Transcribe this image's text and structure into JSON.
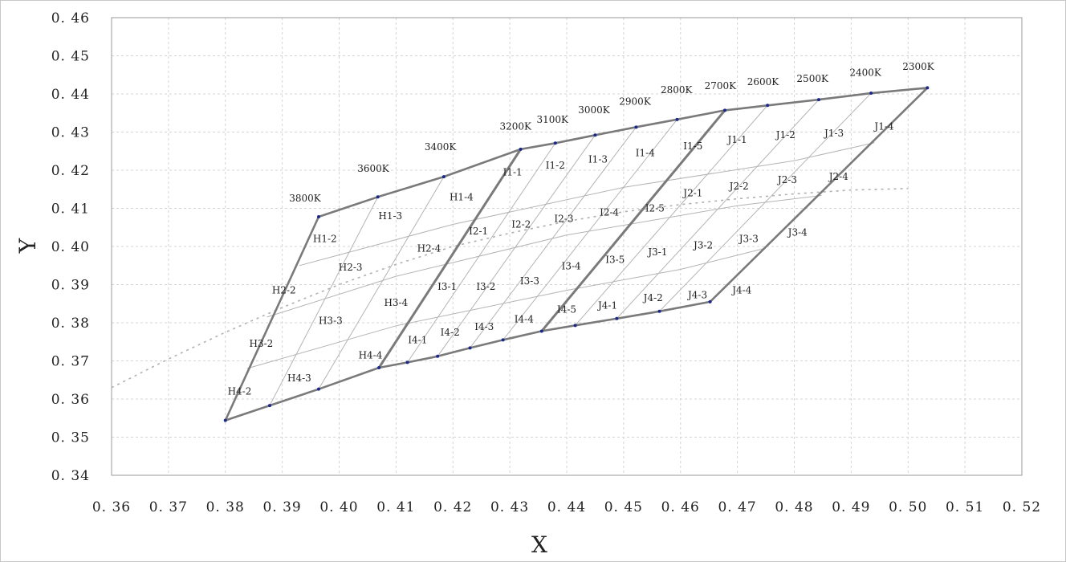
{
  "chart_data": {
    "type": "line",
    "title": "",
    "xlabel": "X",
    "ylabel": "Y",
    "xlim": [
      0.36,
      0.52
    ],
    "ylim": [
      0.34,
      0.46
    ],
    "x_ticks": [
      "0. 36",
      "0. 37",
      "0. 38",
      "0. 39",
      "0. 40",
      "0. 41",
      "0. 42",
      "0. 43",
      "0. 44",
      "0. 45",
      "0. 46",
      "0. 47",
      "0. 48",
      "0. 49",
      "0. 50",
      "0. 51",
      "0. 52"
    ],
    "y_ticks": [
      "0. 34",
      "0. 35",
      "0. 36",
      "0. 37",
      "0. 38",
      "0. 39",
      "0. 40",
      "0. 41",
      "0. 42",
      "0. 43",
      "0. 44",
      "0. 45",
      "0. 46"
    ],
    "x_tick_values": [
      0.36,
      0.37,
      0.38,
      0.39,
      0.4,
      0.41,
      0.42,
      0.43,
      0.44,
      0.45,
      0.46,
      0.47,
      0.48,
      0.49,
      0.5,
      0.51,
      0.52
    ],
    "y_tick_values": [
      0.34,
      0.35,
      0.36,
      0.37,
      0.38,
      0.39,
      0.4,
      0.41,
      0.42,
      0.43,
      0.44,
      0.45,
      0.46
    ],
    "grid": true,
    "grid_style": "dashed",
    "colors": {
      "thick": "#7a7a7a",
      "thin": "#b4b4b4",
      "dots": "#1a2a8a",
      "locus": "#b0b0b0"
    },
    "cct_points": [
      {
        "label": "3800K",
        "x": 0.3964,
        "y": 0.4078,
        "lx": 0.394,
        "ly": 0.4118
      },
      {
        "label": "3600K",
        "x": 0.4068,
        "y": 0.413,
        "lx": 0.406,
        "ly": 0.4196
      },
      {
        "label": "3400K",
        "x": 0.4184,
        "y": 0.4183,
        "lx": 0.4178,
        "ly": 0.4253
      },
      {
        "label": "3200K",
        "x": 0.4319,
        "y": 0.4255,
        "lx": 0.431,
        "ly": 0.4306
      },
      {
        "label": "3100K",
        "x": 0.438,
        "y": 0.4271,
        "lx": 0.4375,
        "ly": 0.4324
      },
      {
        "label": "3000K",
        "x": 0.445,
        "y": 0.4292,
        "lx": 0.4448,
        "ly": 0.435
      },
      {
        "label": "2900K",
        "x": 0.4522,
        "y": 0.4313,
        "lx": 0.452,
        "ly": 0.4372
      },
      {
        "label": "2800K",
        "x": 0.4594,
        "y": 0.4333,
        "lx": 0.4593,
        "ly": 0.4402
      },
      {
        "label": "2700K",
        "x": 0.4678,
        "y": 0.4357,
        "lx": 0.467,
        "ly": 0.4413
      },
      {
        "label": "2600K",
        "x": 0.4753,
        "y": 0.437,
        "lx": 0.4745,
        "ly": 0.4423
      },
      {
        "label": "2500K",
        "x": 0.4843,
        "y": 0.4385,
        "lx": 0.4832,
        "ly": 0.4432
      },
      {
        "label": "2400K",
        "x": 0.4935,
        "y": 0.4402,
        "lx": 0.4925,
        "ly": 0.4447
      },
      {
        "label": "2300K",
        "x": 0.5034,
        "y": 0.4416,
        "lx": 0.5018,
        "ly": 0.4463
      }
    ],
    "bottom_points": [
      {
        "x": 0.38,
        "y": 0.3544
      },
      {
        "x": 0.3878,
        "y": 0.3583
      },
      {
        "x": 0.3964,
        "y": 0.3626
      },
      {
        "x": 0.407,
        "y": 0.3682
      },
      {
        "x": 0.412,
        "y": 0.3696
      },
      {
        "x": 0.4173,
        "y": 0.3712
      },
      {
        "x": 0.423,
        "y": 0.3734
      },
      {
        "x": 0.4288,
        "y": 0.3755
      },
      {
        "x": 0.4356,
        "y": 0.3778
      },
      {
        "x": 0.4415,
        "y": 0.3793
      },
      {
        "x": 0.4488,
        "y": 0.3811
      },
      {
        "x": 0.4563,
        "y": 0.383
      },
      {
        "x": 0.4652,
        "y": 0.3855
      }
    ],
    "outline_points": [
      {
        "x": 0.3964,
        "y": 0.4078
      },
      {
        "x": 0.4068,
        "y": 0.413
      },
      {
        "x": 0.4184,
        "y": 0.4183
      },
      {
        "x": 0.4319,
        "y": 0.4255
      },
      {
        "x": 0.438,
        "y": 0.4271
      },
      {
        "x": 0.445,
        "y": 0.4292
      },
      {
        "x": 0.4522,
        "y": 0.4313
      },
      {
        "x": 0.4594,
        "y": 0.4333
      },
      {
        "x": 0.4678,
        "y": 0.4357
      },
      {
        "x": 0.4753,
        "y": 0.437
      },
      {
        "x": 0.4843,
        "y": 0.4385
      },
      {
        "x": 0.4935,
        "y": 0.4402
      },
      {
        "x": 0.5034,
        "y": 0.4416
      },
      {
        "x": 0.4652,
        "y": 0.3855
      },
      {
        "x": 0.4563,
        "y": 0.383
      },
      {
        "x": 0.4488,
        "y": 0.3811
      },
      {
        "x": 0.4415,
        "y": 0.3793
      },
      {
        "x": 0.4356,
        "y": 0.3778
      },
      {
        "x": 0.4288,
        "y": 0.3755
      },
      {
        "x": 0.423,
        "y": 0.3734
      },
      {
        "x": 0.4173,
        "y": 0.3712
      },
      {
        "x": 0.412,
        "y": 0.3696
      },
      {
        "x": 0.407,
        "y": 0.3682
      },
      {
        "x": 0.3964,
        "y": 0.3626
      },
      {
        "x": 0.3878,
        "y": 0.3583
      },
      {
        "x": 0.38,
        "y": 0.3544
      }
    ],
    "thick_dividers": [
      {
        "from": {
          "x": 0.4319,
          "y": 0.4255
        },
        "to": {
          "x": 0.407,
          "y": 0.3682
        }
      },
      {
        "from": {
          "x": 0.4678,
          "y": 0.4357
        },
        "to": {
          "x": 0.4356,
          "y": 0.3778
        }
      }
    ],
    "thin_vertical_lines": [
      {
        "from": {
          "x": 0.4068,
          "y": 0.413
        },
        "to": {
          "x": 0.3878,
          "y": 0.3583
        }
      },
      {
        "from": {
          "x": 0.4184,
          "y": 0.4183
        },
        "to": {
          "x": 0.3964,
          "y": 0.3626
        }
      },
      {
        "from": {
          "x": 0.438,
          "y": 0.4271
        },
        "to": {
          "x": 0.412,
          "y": 0.3696
        }
      },
      {
        "from": {
          "x": 0.445,
          "y": 0.4292
        },
        "to": {
          "x": 0.4173,
          "y": 0.3712
        }
      },
      {
        "from": {
          "x": 0.4522,
          "y": 0.4313
        },
        "to": {
          "x": 0.423,
          "y": 0.3734
        }
      },
      {
        "from": {
          "x": 0.4594,
          "y": 0.4333
        },
        "to": {
          "x": 0.4288,
          "y": 0.3755
        }
      },
      {
        "from": {
          "x": 0.4753,
          "y": 0.437
        },
        "to": {
          "x": 0.4415,
          "y": 0.3793
        }
      },
      {
        "from": {
          "x": 0.4843,
          "y": 0.4385
        },
        "to": {
          "x": 0.4488,
          "y": 0.3811
        }
      },
      {
        "from": {
          "x": 0.4935,
          "y": 0.4402
        },
        "to": {
          "x": 0.4563,
          "y": 0.383
        }
      }
    ],
    "thin_horizontal_lines": [
      [
        {
          "x": 0.393,
          "y": 0.395
        },
        {
          "x": 0.42,
          "y": 0.4058
        },
        {
          "x": 0.45,
          "y": 0.4155
        },
        {
          "x": 0.48,
          "y": 0.4225
        },
        {
          "x": 0.4941,
          "y": 0.4272
        }
      ],
      [
        {
          "x": 0.3873,
          "y": 0.3815
        },
        {
          "x": 0.41,
          "y": 0.3922
        },
        {
          "x": 0.44,
          "y": 0.403
        },
        {
          "x": 0.47,
          "y": 0.4107
        },
        {
          "x": 0.4848,
          "y": 0.4134
        }
      ],
      [
        {
          "x": 0.3838,
          "y": 0.368
        },
        {
          "x": 0.41,
          "y": 0.3792
        },
        {
          "x": 0.44,
          "y": 0.3885
        },
        {
          "x": 0.46,
          "y": 0.394
        },
        {
          "x": 0.4748,
          "y": 0.3995
        }
      ]
    ],
    "planckian_locus": [
      {
        "x": 0.36,
        "y": 0.363
      },
      {
        "x": 0.37,
        "y": 0.3705
      },
      {
        "x": 0.38,
        "y": 0.3775
      },
      {
        "x": 0.39,
        "y": 0.384
      },
      {
        "x": 0.4,
        "y": 0.39
      },
      {
        "x": 0.41,
        "y": 0.3953
      },
      {
        "x": 0.42,
        "y": 0.4
      },
      {
        "x": 0.43,
        "y": 0.4035
      },
      {
        "x": 0.44,
        "y": 0.4066
      },
      {
        "x": 0.45,
        "y": 0.4091
      },
      {
        "x": 0.46,
        "y": 0.411
      },
      {
        "x": 0.47,
        "y": 0.4125
      },
      {
        "x": 0.48,
        "y": 0.4138
      },
      {
        "x": 0.49,
        "y": 0.4148
      },
      {
        "x": 0.5,
        "y": 0.4152
      }
    ],
    "bin_labels": [
      {
        "label": "H1-2",
        "x": 0.3975,
        "y": 0.402
      },
      {
        "label": "H1-3",
        "x": 0.409,
        "y": 0.408
      },
      {
        "label": "H1-4",
        "x": 0.4215,
        "y": 0.413
      },
      {
        "label": "H2-2",
        "x": 0.3903,
        "y": 0.3885
      },
      {
        "label": "H2-3",
        "x": 0.402,
        "y": 0.3945
      },
      {
        "label": "H2-4",
        "x": 0.4158,
        "y": 0.3995
      },
      {
        "label": "H3-2",
        "x": 0.3863,
        "y": 0.3745
      },
      {
        "label": "H3-3",
        "x": 0.3985,
        "y": 0.3805
      },
      {
        "label": "H3-4",
        "x": 0.41,
        "y": 0.3853
      },
      {
        "label": "H4-2",
        "x": 0.3825,
        "y": 0.362
      },
      {
        "label": "H4-3",
        "x": 0.393,
        "y": 0.3655
      },
      {
        "label": "H4-4",
        "x": 0.4055,
        "y": 0.3715
      },
      {
        "label": "I1-1",
        "x": 0.4305,
        "y": 0.4195
      },
      {
        "label": "I1-2",
        "x": 0.438,
        "y": 0.4213
      },
      {
        "label": "I1-3",
        "x": 0.4455,
        "y": 0.4228
      },
      {
        "label": "I1-4",
        "x": 0.4538,
        "y": 0.4245
      },
      {
        "label": "I1-5",
        "x": 0.4622,
        "y": 0.4263
      },
      {
        "label": "I2-1",
        "x": 0.4245,
        "y": 0.404
      },
      {
        "label": "I2-2",
        "x": 0.432,
        "y": 0.4058
      },
      {
        "label": "I2-3",
        "x": 0.4395,
        "y": 0.4073
      },
      {
        "label": "I2-4",
        "x": 0.4475,
        "y": 0.409
      },
      {
        "label": "I2-5",
        "x": 0.4555,
        "y": 0.41
      },
      {
        "label": "I3-1",
        "x": 0.419,
        "y": 0.3895
      },
      {
        "label": "I3-2",
        "x": 0.4258,
        "y": 0.3895
      },
      {
        "label": "I3-3",
        "x": 0.4335,
        "y": 0.391
      },
      {
        "label": "I3-4",
        "x": 0.4408,
        "y": 0.3948
      },
      {
        "label": "I3-5",
        "x": 0.4485,
        "y": 0.3965
      },
      {
        "label": "I4-1",
        "x": 0.4138,
        "y": 0.3755
      },
      {
        "label": "I4-2",
        "x": 0.4195,
        "y": 0.3775
      },
      {
        "label": "I4-3",
        "x": 0.4255,
        "y": 0.379
      },
      {
        "label": "I4-4",
        "x": 0.4325,
        "y": 0.381
      },
      {
        "label": "I4-5",
        "x": 0.44,
        "y": 0.3835
      },
      {
        "label": "J1-1",
        "x": 0.47,
        "y": 0.428
      },
      {
        "label": "J1-2",
        "x": 0.4785,
        "y": 0.4293
      },
      {
        "label": "J1-3",
        "x": 0.487,
        "y": 0.4297
      },
      {
        "label": "J1-4",
        "x": 0.4958,
        "y": 0.4315
      },
      {
        "label": "J2-1",
        "x": 0.4622,
        "y": 0.414
      },
      {
        "label": "J2-2",
        "x": 0.4703,
        "y": 0.4158
      },
      {
        "label": "J2-3",
        "x": 0.4788,
        "y": 0.4175
      },
      {
        "label": "J2-4",
        "x": 0.4878,
        "y": 0.4183
      },
      {
        "label": "J3-1",
        "x": 0.456,
        "y": 0.3985
      },
      {
        "label": "J3-2",
        "x": 0.464,
        "y": 0.4003
      },
      {
        "label": "J3-3",
        "x": 0.472,
        "y": 0.402
      },
      {
        "label": "J3-4",
        "x": 0.4806,
        "y": 0.4037
      },
      {
        "label": "J4-1",
        "x": 0.4472,
        "y": 0.3845
      },
      {
        "label": "J4-2",
        "x": 0.4552,
        "y": 0.3865
      },
      {
        "label": "J4-3",
        "x": 0.463,
        "y": 0.3873
      },
      {
        "label": "J4-4",
        "x": 0.4708,
        "y": 0.3885
      }
    ]
  }
}
